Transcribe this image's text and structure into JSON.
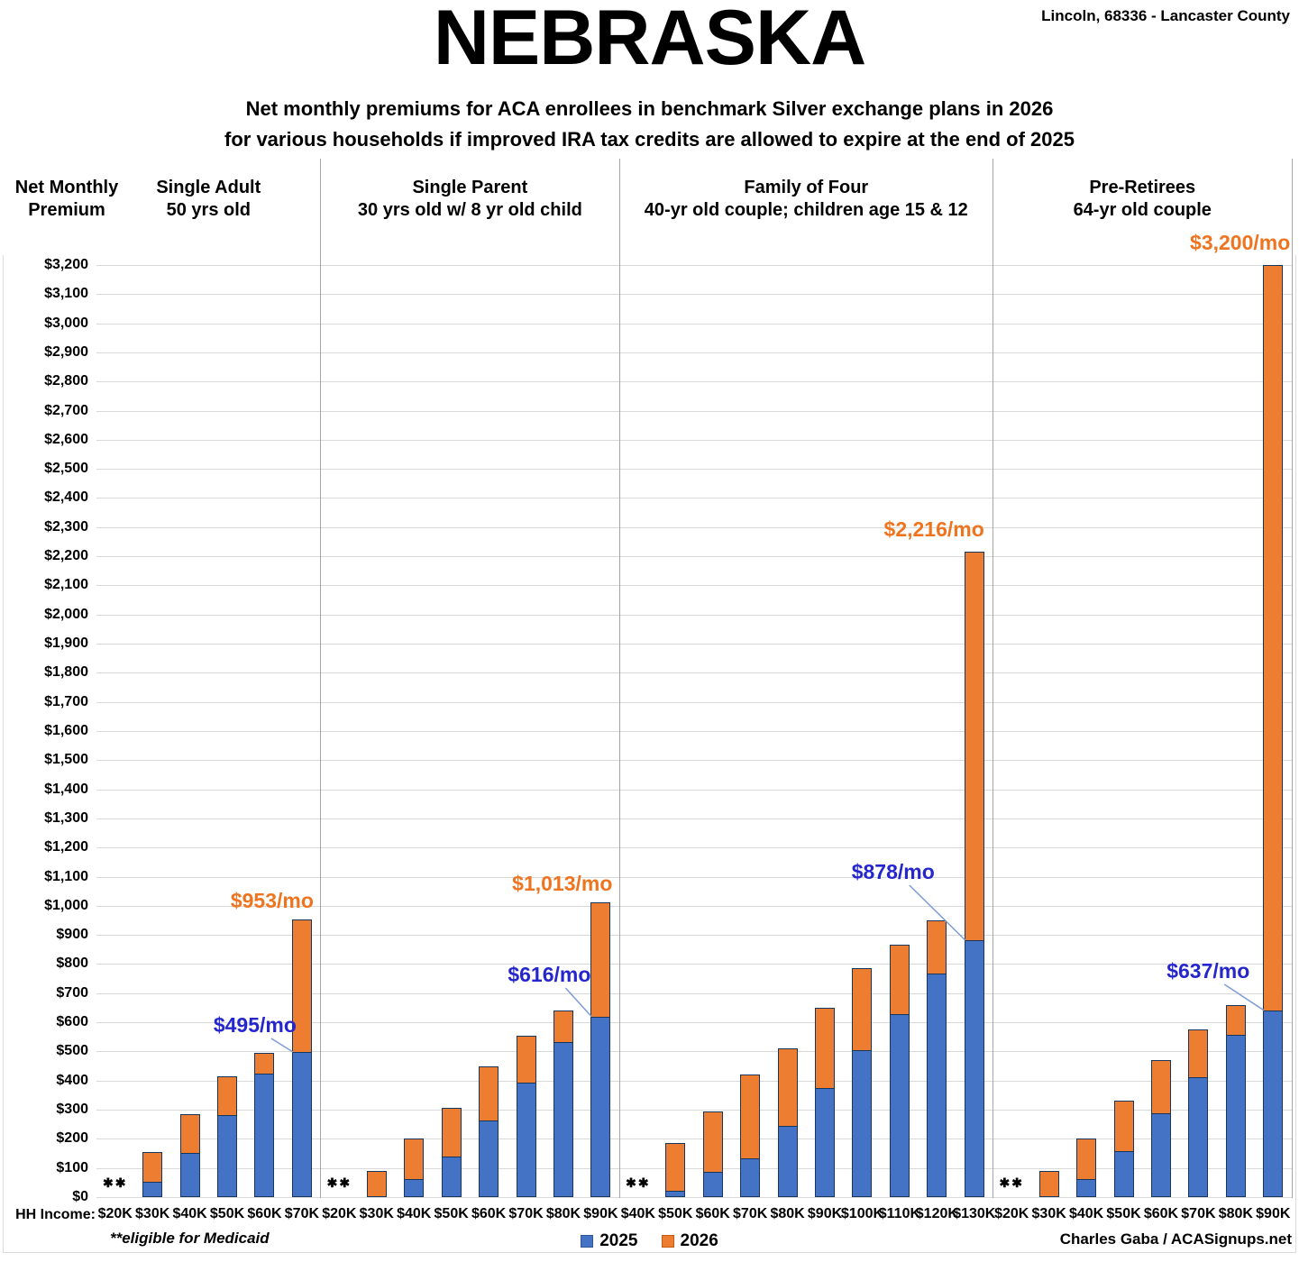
{
  "page": {
    "location": "Lincoln, 68336 - Lancaster County",
    "title": "NEBRASKA",
    "subtitle1": "Net monthly premiums for ACA enrollees in benchmark Silver exchange plans in 2026",
    "subtitle2": "for various households if improved IRA tax credits are allowed to expire at the end of 2025",
    "y_axis_title1": "Net Monthly",
    "y_axis_title2": "Premium",
    "x_axis_label": "HH Income:",
    "medicaid_note": "**eligible for Medicaid",
    "medicaid_marker": "✱✱",
    "credit": "Charles Gaba / ACASignups.net"
  },
  "legend": {
    "items": [
      {
        "label": "2025",
        "color": "#4472C4",
        "border": "#2F5597"
      },
      {
        "label": "2026",
        "color": "#ED7D31",
        "border": "#C55A11"
      }
    ]
  },
  "colors": {
    "bar2025": "#4472C4",
    "bar2026": "#ED7D31",
    "bar_border": "#17365D",
    "annotation_blue": "#2626CD",
    "annotation_orange": "#EE741F",
    "callout_line": "#7E9CD6",
    "gridline": "#D9D9D9",
    "divider": "#A6A6A6"
  },
  "chart_data": {
    "type": "bar",
    "stacked": true,
    "grid": true,
    "ylim": [
      0,
      3200
    ],
    "ytick_step": 100,
    "ytick_prefix": "$",
    "legend_position": "bottom",
    "series_names": [
      "2025",
      "2026"
    ],
    "note": "values are net monthly premium dollars; totals_2026 are full stacked bar heights; null = eligible for Medicaid (no bar)",
    "panels": [
      {
        "title1": "Single Adult",
        "title2": "50 yrs old",
        "categories": [
          "$20K",
          "$30K",
          "$40K",
          "$50K",
          "$60K",
          "$70K"
        ],
        "values_2025": [
          null,
          50,
          150,
          280,
          420,
          495
        ],
        "totals_2026": [
          null,
          155,
          285,
          415,
          495,
          953
        ],
        "medicaid_eligible": [
          "$20K"
        ],
        "ann_2025": {
          "text": "$495/mo",
          "value": 495
        },
        "ann_2026": {
          "text": "$953/mo",
          "value": 953
        }
      },
      {
        "title1": "Single Parent",
        "title2": "30 yrs old w/ 8 yr old child",
        "categories": [
          "$20K",
          "$30K",
          "$40K",
          "$50K",
          "$60K",
          "$70K",
          "$80K",
          "$90K"
        ],
        "values_2025": [
          null,
          0,
          60,
          135,
          260,
          390,
          530,
          616
        ],
        "totals_2026": [
          null,
          90,
          200,
          305,
          450,
          555,
          640,
          1013
        ],
        "medicaid_eligible": [
          "$20K"
        ],
        "ann_2025": {
          "text": "$616/mo",
          "value": 616
        },
        "ann_2026": {
          "text": "$1,013/mo",
          "value": 1013
        }
      },
      {
        "title1": "Family of Four",
        "title2": "40-yr old couple; children age 15 & 12",
        "categories": [
          "$40K",
          "$50K",
          "$60K",
          "$70K",
          "$80K",
          "$90K",
          "$100K",
          "$110K",
          "$120K",
          "$130K"
        ],
        "values_2025": [
          null,
          18,
          85,
          130,
          240,
          370,
          500,
          625,
          765,
          878
        ],
        "totals_2026": [
          null,
          185,
          295,
          420,
          510,
          650,
          785,
          865,
          950,
          2216
        ],
        "medicaid_eligible": [
          "$40K"
        ],
        "ann_2025": {
          "text": "$878/mo",
          "value": 878
        },
        "ann_2026": {
          "text": "$2,216/mo",
          "value": 2216
        }
      },
      {
        "title1": "Pre-Retirees",
        "title2": "64-yr old couple",
        "categories": [
          "$20K",
          "$30K",
          "$40K",
          "$50K",
          "$60K",
          "$70K",
          "$80K",
          "$90K"
        ],
        "values_2025": [
          null,
          0,
          60,
          155,
          285,
          410,
          555,
          637
        ],
        "totals_2026": [
          null,
          90,
          200,
          330,
          470,
          575,
          660,
          3200
        ],
        "medicaid_eligible": [
          "$20K"
        ],
        "ann_2025": {
          "text": "$637/mo",
          "value": 637
        },
        "ann_2026": {
          "text": "$3,200/mo",
          "value": 3200
        }
      }
    ]
  }
}
